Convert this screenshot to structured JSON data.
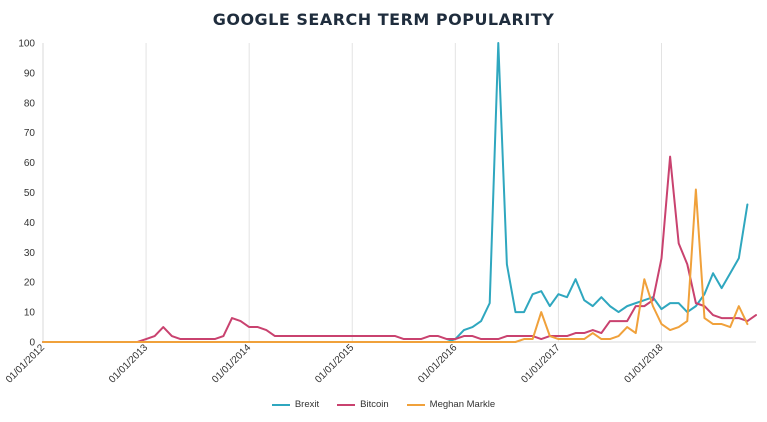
{
  "chart_data": {
    "type": "line",
    "title": "GOOGLE SEARCH TERM POPULARITY",
    "xlabel": "",
    "ylabel": "",
    "ylim": [
      0,
      100
    ],
    "y_ticks": [
      0,
      10,
      20,
      30,
      40,
      50,
      60,
      70,
      80,
      90,
      100
    ],
    "x_range": [
      "2012-01",
      "2018-12"
    ],
    "x_ticks": [
      "01/01/2012",
      "01/01/2013",
      "01/01/2014",
      "01/01/2015",
      "01/01/2016",
      "01/01/2017",
      "01/01/2018"
    ],
    "grid": "vertical lines at year ticks",
    "legend_position": "bottom",
    "series": [
      {
        "name": "Brexit",
        "color": "#2fa7bf",
        "points": [
          [
            "2012-01",
            0
          ],
          [
            "2015-12",
            0
          ],
          [
            "2016-01",
            1
          ],
          [
            "2016-02",
            4
          ],
          [
            "2016-03",
            5
          ],
          [
            "2016-04",
            7
          ],
          [
            "2016-05",
            13
          ],
          [
            "2016-06",
            100
          ],
          [
            "2016-07",
            26
          ],
          [
            "2016-08",
            10
          ],
          [
            "2016-09",
            10
          ],
          [
            "2016-10",
            16
          ],
          [
            "2016-11",
            17
          ],
          [
            "2016-12",
            12
          ],
          [
            "2017-01",
            16
          ],
          [
            "2017-02",
            15
          ],
          [
            "2017-03",
            21
          ],
          [
            "2017-04",
            14
          ],
          [
            "2017-05",
            12
          ],
          [
            "2017-06",
            15
          ],
          [
            "2017-07",
            12
          ],
          [
            "2017-08",
            10
          ],
          [
            "2017-09",
            12
          ],
          [
            "2017-10",
            13
          ],
          [
            "2017-11",
            14
          ],
          [
            "2017-12",
            15
          ],
          [
            "2018-01",
            11
          ],
          [
            "2018-02",
            13
          ],
          [
            "2018-03",
            13
          ],
          [
            "2018-04",
            10
          ],
          [
            "2018-05",
            12
          ],
          [
            "2018-06",
            16
          ],
          [
            "2018-07",
            23
          ],
          [
            "2018-08",
            18
          ],
          [
            "2018-09",
            23
          ],
          [
            "2018-10",
            28
          ],
          [
            "2018-11",
            46
          ]
        ]
      },
      {
        "name": "Bitcoin",
        "color": "#c9426f",
        "points": [
          [
            "2012-01",
            0
          ],
          [
            "2012-12",
            0
          ],
          [
            "2013-01",
            1
          ],
          [
            "2013-02",
            2
          ],
          [
            "2013-03",
            5
          ],
          [
            "2013-04",
            2
          ],
          [
            "2013-05",
            1
          ],
          [
            "2013-06",
            1
          ],
          [
            "2013-07",
            1
          ],
          [
            "2013-08",
            1
          ],
          [
            "2013-09",
            1
          ],
          [
            "2013-10",
            2
          ],
          [
            "2013-11",
            8
          ],
          [
            "2013-12",
            7
          ],
          [
            "2014-01",
            5
          ],
          [
            "2014-02",
            5
          ],
          [
            "2014-03",
            4
          ],
          [
            "2014-04",
            2
          ],
          [
            "2014-05",
            2
          ],
          [
            "2015-06",
            2
          ],
          [
            "2015-07",
            1
          ],
          [
            "2015-09",
            1
          ],
          [
            "2015-10",
            2
          ],
          [
            "2015-11",
            2
          ],
          [
            "2015-12",
            1
          ],
          [
            "2016-01",
            1
          ],
          [
            "2016-02",
            2
          ],
          [
            "2016-03",
            2
          ],
          [
            "2016-04",
            1
          ],
          [
            "2016-05",
            1
          ],
          [
            "2016-06",
            1
          ],
          [
            "2016-07",
            2
          ],
          [
            "2016-10",
            2
          ],
          [
            "2016-11",
            1
          ],
          [
            "2016-12",
            2
          ],
          [
            "2017-01",
            2
          ],
          [
            "2017-02",
            2
          ],
          [
            "2017-03",
            3
          ],
          [
            "2017-04",
            3
          ],
          [
            "2017-05",
            4
          ],
          [
            "2017-06",
            3
          ],
          [
            "2017-07",
            7
          ],
          [
            "2017-08",
            7
          ],
          [
            "2017-09",
            7
          ],
          [
            "2017-10",
            12
          ],
          [
            "2017-11",
            12
          ],
          [
            "2017-12",
            14
          ],
          [
            "2018-01",
            28
          ],
          [
            "2018-02",
            62
          ],
          [
            "2018-03",
            33
          ],
          [
            "2018-04",
            26
          ],
          [
            "2018-05",
            13
          ],
          [
            "2018-06",
            12
          ],
          [
            "2018-07",
            9
          ],
          [
            "2018-08",
            8
          ],
          [
            "2018-09",
            8
          ],
          [
            "2018-10",
            8
          ],
          [
            "2018-11",
            7
          ],
          [
            "2018-12",
            9
          ]
        ]
      },
      {
        "name": "Meghan Markle",
        "color": "#f0a13b",
        "points": [
          [
            "2012-01",
            0
          ],
          [
            "2016-08",
            0
          ],
          [
            "2016-09",
            1
          ],
          [
            "2016-10",
            1
          ],
          [
            "2016-11",
            10
          ],
          [
            "2016-12",
            2
          ],
          [
            "2017-01",
            1
          ],
          [
            "2017-02",
            1
          ],
          [
            "2017-03",
            1
          ],
          [
            "2017-04",
            1
          ],
          [
            "2017-05",
            3
          ],
          [
            "2017-06",
            1
          ],
          [
            "2017-07",
            1
          ],
          [
            "2017-08",
            2
          ],
          [
            "2017-09",
            5
          ],
          [
            "2017-10",
            3
          ],
          [
            "2017-11",
            21
          ],
          [
            "2017-12",
            12
          ],
          [
            "2018-01",
            6
          ],
          [
            "2018-02",
            4
          ],
          [
            "2018-03",
            5
          ],
          [
            "2018-04",
            7
          ],
          [
            "2018-05",
            51
          ],
          [
            "2018-06",
            8
          ],
          [
            "2018-07",
            6
          ],
          [
            "2018-08",
            6
          ],
          [
            "2018-09",
            5
          ],
          [
            "2018-10",
            12
          ],
          [
            "2018-11",
            6
          ]
        ]
      }
    ]
  }
}
